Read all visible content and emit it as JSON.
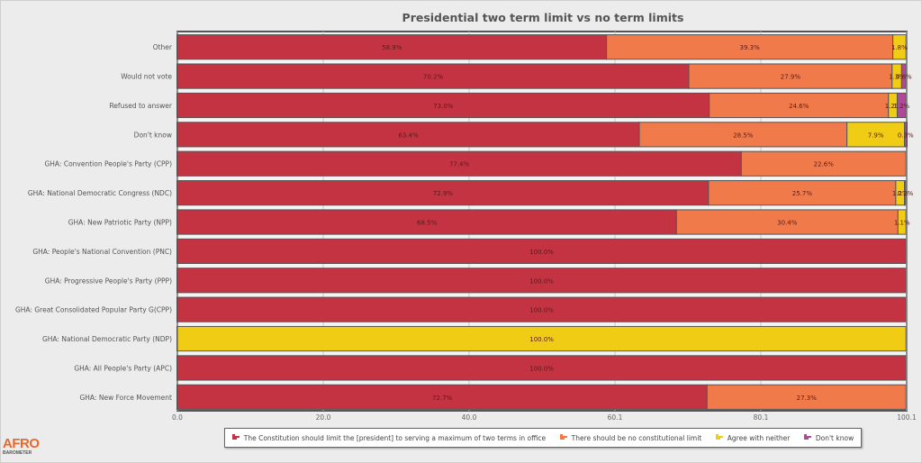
{
  "chart_data": {
    "type": "bar",
    "orientation": "horizontal",
    "stacked": true,
    "title": "Presidential two term limit vs no term limits",
    "xlabel": "",
    "ylabel": "",
    "xlim": [
      0,
      100.1
    ],
    "x_ticks": [
      "0.0",
      "20.0",
      "40.0",
      "60.1",
      "80.1",
      "100.1"
    ],
    "grid": true,
    "legend_position": "bottom",
    "categories": [
      "Other",
      "Would not vote",
      "Refused to answer",
      "Don't know",
      "GHA: Convention People's Party (CPP)",
      "GHA: National Democratic Congress (NDC)",
      "GHA: New Patriotic Party (NPP)",
      "GHA: People's National Convention (PNC)",
      "GHA: Progressive People's Party (PPP)",
      "GHA: Great Consolidated Popular Party G(CPP)",
      "GHA: National Democratic Party (NDP)",
      "GHA: All People's Party (APC)",
      "GHA: New Force Movement"
    ],
    "series": [
      {
        "name": "The Constitution should limit the [president] to serving a maximum of two terms in office",
        "color": "#c43341",
        "values": [
          58.9,
          70.2,
          73.0,
          63.4,
          77.4,
          72.9,
          68.5,
          100.0,
          100.0,
          100.0,
          0,
          100.0,
          72.7
        ]
      },
      {
        "name": "There should be no constitutional limit",
        "color": "#f07a4a",
        "values": [
          39.3,
          27.9,
          24.6,
          28.5,
          22.6,
          25.7,
          30.4,
          0,
          0,
          0,
          0,
          0,
          27.3
        ]
      },
      {
        "name": "Agree with neither",
        "color": "#f0cc14",
        "values": [
          1.8,
          1.3,
          1.2,
          7.9,
          0,
          1.2,
          1.1,
          0,
          0,
          0,
          100.0,
          0,
          0
        ]
      },
      {
        "name": "Don't know",
        "color": "#b04a98",
        "values": [
          0,
          0.6,
          1.2,
          0.3,
          0,
          0.2,
          0,
          0,
          0,
          0,
          0,
          0,
          0
        ]
      }
    ]
  },
  "branding": {
    "logo_top": "AFRO",
    "logo_bottom": "BAROMETER"
  }
}
